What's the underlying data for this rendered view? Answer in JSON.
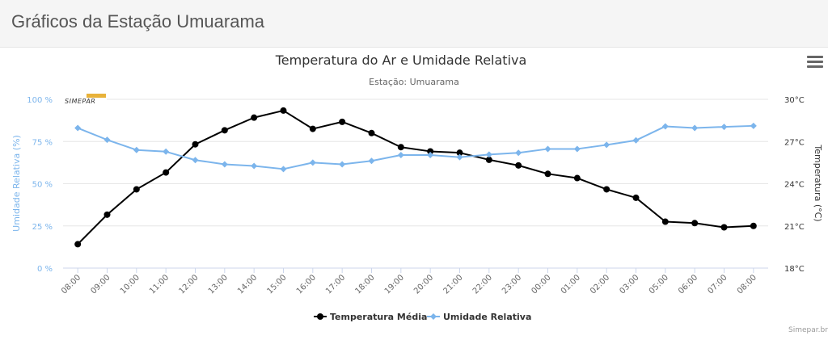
{
  "page": {
    "title": "Gráficos da Estação Umuarama"
  },
  "menu": {
    "icon": "hamburger-icon"
  },
  "credits": "Simepar.br",
  "logo": {
    "text": "SIMEPAR",
    "color": "#e8b23a"
  },
  "colors": {
    "temperature": "#000000",
    "humidity": "#7cb5ec",
    "humidity_axis": "#7cb5ec"
  },
  "chart_data": {
    "type": "line",
    "title": "Temperatura do Ar e Umidade Relativa",
    "subtitle": "Estação: Umuarama",
    "categories": [
      "08:00",
      "09:00",
      "10:00",
      "11:00",
      "12:00",
      "13:00",
      "14:00",
      "15:00",
      "16:00",
      "17:00",
      "18:00",
      "19:00",
      "20:00",
      "21:00",
      "22:00",
      "23:00",
      "00:00",
      "01:00",
      "02:00",
      "03:00",
      "05:00",
      "06:00",
      "07:00",
      "08:00"
    ],
    "y_left": {
      "label": "Umidade Relativa (%)",
      "min": 0,
      "max": 100,
      "ticks": [
        "0 %",
        "25 %",
        "50 %",
        "75 %",
        "100 %"
      ]
    },
    "y_right": {
      "label": "Temperatura (°C)",
      "min": 18,
      "max": 30,
      "ticks": [
        "18°C",
        "21°C",
        "24°C",
        "27°C",
        "30°C"
      ]
    },
    "series": [
      {
        "name": "Temperatura Média",
        "axis": "right",
        "color": "#000000",
        "values": [
          19.7,
          21.8,
          23.6,
          24.8,
          26.8,
          27.8,
          28.7,
          29.2,
          27.9,
          28.4,
          27.6,
          26.6,
          26.3,
          26.2,
          25.7,
          25.3,
          24.7,
          24.4,
          23.6,
          23.0,
          21.3,
          21.2,
          20.9,
          21.0
        ]
      },
      {
        "name": "Umidade Relativa",
        "axis": "left",
        "color": "#7cb5ec",
        "values": [
          83,
          76,
          70,
          69,
          64,
          61.5,
          60.5,
          58.7,
          62.5,
          61.5,
          63.5,
          67,
          67,
          65.7,
          67.3,
          68.3,
          70.6,
          70.6,
          73,
          75.7,
          84,
          83,
          83.7,
          84.3
        ]
      }
    ],
    "legend": {
      "position": "bottom-center"
    },
    "grid": true
  }
}
